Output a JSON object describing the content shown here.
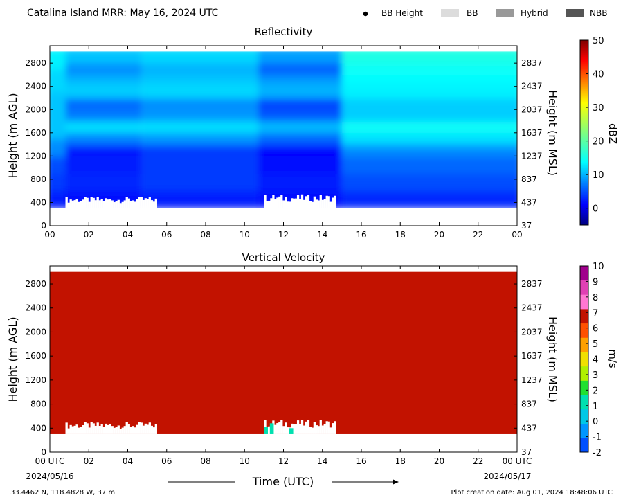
{
  "header": {
    "title": "Catalina Island MRR:  May 16, 2024 UTC",
    "legend": [
      {
        "label": "BB Height",
        "marker": "dot",
        "color": "#000000"
      },
      {
        "label": "BB",
        "marker": "patch",
        "color": "#dcdcdc"
      },
      {
        "label": "Hybrid",
        "marker": "patch",
        "color": "#999999"
      },
      {
        "label": "NBB",
        "marker": "patch",
        "color": "#555555"
      }
    ]
  },
  "footer": {
    "location": "33.4462 N, 118.4828 W, 37 m",
    "created": "Plot creation date: Aug 01, 2024 18:48:06 UTC",
    "date_start": "2024/05/16",
    "date_end": "2024/05/17"
  },
  "chart_data": [
    {
      "type": "heatmap",
      "title": "Reflectivity",
      "xlabel": "",
      "ylabel": "Height (m AGL)",
      "ylabel_right": "Height (m MSL)",
      "x_ticks": [
        "00",
        "02",
        "04",
        "06",
        "08",
        "10",
        "12",
        "14",
        "16",
        "18",
        "20",
        "22",
        "00"
      ],
      "xlim_hours": [
        0,
        24
      ],
      "y_ticks": [
        0,
        400,
        800,
        1200,
        1600,
        2000,
        2400,
        2800
      ],
      "y_ticks_right": [
        37,
        437,
        837,
        1237,
        1637,
        2037,
        2437,
        2837
      ],
      "ylim": [
        0,
        3100
      ],
      "data_top_m": 3000,
      "data_bottom_m": 300,
      "colorbar": {
        "label": "dBZ",
        "range": [
          -5,
          50
        ],
        "ticks": [
          0,
          10,
          20,
          30,
          40,
          50
        ],
        "colormap": "jet"
      },
      "time_segments": [
        {
          "hours": [
            0,
            0.8
          ],
          "profile_dbz": [
            [
              300,
              3
            ],
            [
              600,
              4
            ],
            [
              900,
              6
            ],
            [
              1200,
              6
            ],
            [
              1500,
              13
            ],
            [
              1900,
              12
            ],
            [
              2300,
              13
            ],
            [
              2700,
              14
            ],
            [
              3000,
              16
            ]
          ]
        },
        {
          "hours": [
            0.8,
            4.7
          ],
          "profile_dbz": [
            [
              300,
              2
            ],
            [
              600,
              3
            ],
            [
              900,
              5
            ],
            [
              1200,
              2
            ],
            [
              1400,
              4
            ],
            [
              1600,
              14
            ],
            [
              1800,
              14
            ],
            [
              2000,
              3
            ],
            [
              2200,
              12
            ],
            [
              2450,
              14
            ],
            [
              2600,
              9
            ],
            [
              2800,
              10
            ],
            [
              3000,
              15
            ]
          ]
        },
        {
          "hours": [
            4.7,
            10.7
          ],
          "profile_dbz": [
            [
              300,
              3
            ],
            [
              600,
              4
            ],
            [
              900,
              6
            ],
            [
              1200,
              4
            ],
            [
              1400,
              6
            ],
            [
              1600,
              14
            ],
            [
              1800,
              14
            ],
            [
              2000,
              6
            ],
            [
              2200,
              13
            ],
            [
              2450,
              14
            ],
            [
              2600,
              11
            ],
            [
              2800,
              12
            ],
            [
              3000,
              15
            ]
          ]
        },
        {
          "hours": [
            10.7,
            15.0
          ],
          "profile_dbz": [
            [
              300,
              2
            ],
            [
              600,
              3
            ],
            [
              900,
              4
            ],
            [
              1200,
              1
            ],
            [
              1400,
              3
            ],
            [
              1600,
              12
            ],
            [
              1800,
              12
            ],
            [
              2000,
              1
            ],
            [
              2200,
              10
            ],
            [
              2450,
              13
            ],
            [
              2600,
              7
            ],
            [
              2800,
              7
            ],
            [
              3000,
              14
            ]
          ]
        },
        {
          "hours": [
            15.0,
            24
          ],
          "profile_dbz": [
            [
              300,
              3
            ],
            [
              600,
              5
            ],
            [
              900,
              7
            ],
            [
              1200,
              8
            ],
            [
              1400,
              11
            ],
            [
              1600,
              17
            ],
            [
              1800,
              15
            ],
            [
              2000,
              11
            ],
            [
              2200,
              15
            ],
            [
              2450,
              15
            ],
            [
              2600,
              16
            ],
            [
              2800,
              16
            ],
            [
              3000,
              18
            ]
          ]
        }
      ],
      "surface_gap": [
        {
          "hours": [
            0.8,
            5.5
          ],
          "top_m": 500
        },
        {
          "hours": [
            11.0,
            14.7
          ],
          "top_m": 540
        }
      ]
    },
    {
      "type": "heatmap",
      "title": "Vertical Velocity",
      "xlabel": "Time (UTC)",
      "ylabel": "Height (m AGL)",
      "ylabel_right": "Height (m MSL)",
      "x_ticks": [
        "00 UTC",
        "02",
        "04",
        "06",
        "08",
        "10",
        "12",
        "14",
        "16",
        "18",
        "20",
        "22",
        "00 UTC"
      ],
      "xlim_hours": [
        0,
        24
      ],
      "y_ticks": [
        0,
        400,
        800,
        1200,
        1600,
        2000,
        2400,
        2800
      ],
      "y_ticks_right": [
        37,
        437,
        837,
        1237,
        1637,
        2037,
        2437,
        2837
      ],
      "ylim": [
        0,
        3100
      ],
      "data_top_m": 3000,
      "data_bottom_m": 300,
      "fill_value_ms": 6,
      "fill_color": "#c21200",
      "colorbar": {
        "label": "m/s",
        "range": [
          -2,
          10
        ],
        "ticks": [
          -2,
          -1,
          0,
          1,
          2,
          3,
          4,
          5,
          6,
          7,
          8,
          9,
          10
        ],
        "colors": [
          "#0050ff",
          "#0096ff",
          "#00c8e6",
          "#00e0b0",
          "#20e030",
          "#b0f000",
          "#f0e000",
          "#ffa000",
          "#ff5000",
          "#c21200",
          "#ff78d2",
          "#e040b4",
          "#a0008c"
        ]
      },
      "surface_gap": [
        {
          "hours": [
            0.8,
            5.5
          ],
          "top_m": 500
        },
        {
          "hours": [
            11.0,
            14.7
          ],
          "top_m": 540
        }
      ],
      "anomalies": [
        {
          "hours": [
            11.0,
            11.2
          ],
          "heights_m": [
            300,
            420
          ],
          "value_ms": 1
        },
        {
          "hours": [
            11.3,
            11.5
          ],
          "heights_m": [
            300,
            480
          ],
          "value_ms": 1
        },
        {
          "hours": [
            12.3,
            12.5
          ],
          "heights_m": [
            300,
            400
          ],
          "value_ms": 1
        }
      ]
    }
  ]
}
